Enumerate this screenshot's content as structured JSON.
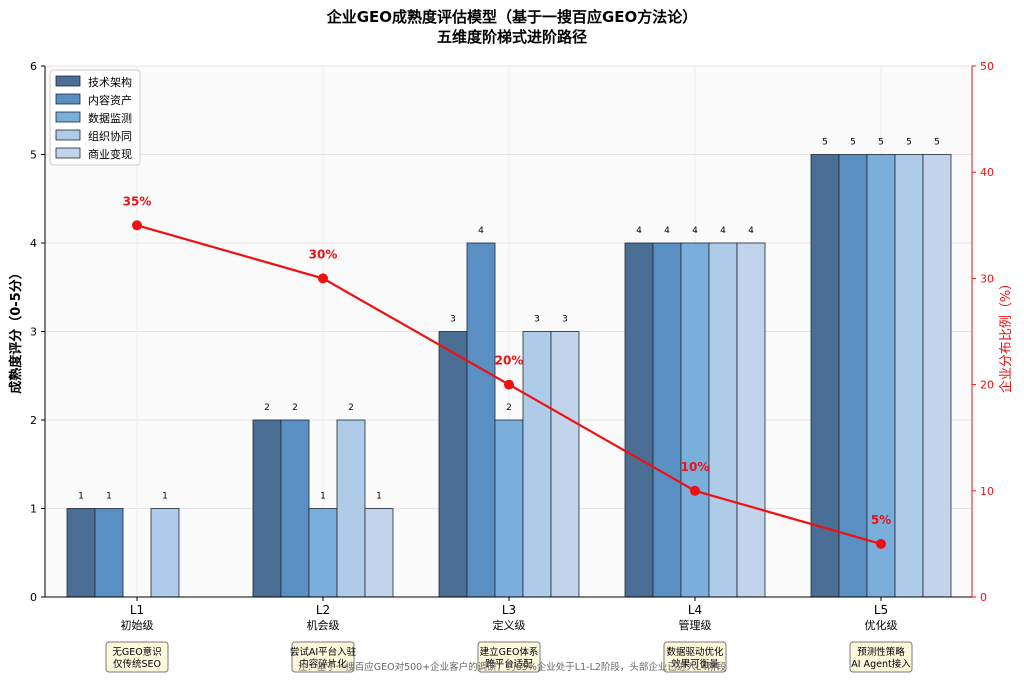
{
  "chart_data": {
    "type": "bar",
    "title": "企业GEO成熟度评估模型（基于一搜百应GEO方法论）",
    "subtitle": "五维度阶梯式进阶路径",
    "ylabel": "成熟度评分（0-5分）",
    "y2label": "企业分布比例（%）",
    "ylim": [
      0,
      6
    ],
    "y2lim": [
      0,
      50
    ],
    "yticks": [
      "0",
      "1",
      "2",
      "3",
      "4",
      "5",
      "6"
    ],
    "y2ticks": [
      "0",
      "10",
      "20",
      "30",
      "40",
      "50"
    ],
    "categories": [
      "L1",
      "L2",
      "L3",
      "L4",
      "L5"
    ],
    "category_names": [
      "初始级",
      "机会级",
      "定义级",
      "管理级",
      "优化级"
    ],
    "category_notes": [
      [
        "无GEO意识",
        "仅传统SEO"
      ],
      [
        "尝试AI平台入驻",
        "内容碎片化"
      ],
      [
        "建立GEO体系",
        "跨平台适配"
      ],
      [
        "数据驱动优化",
        "效果可衡量"
      ],
      [
        "预测性策略",
        "AI Agent接入"
      ]
    ],
    "series": [
      {
        "name": "技术架构",
        "color": "#4a6e94",
        "values": [
          1,
          2,
          3,
          4,
          5
        ]
      },
      {
        "name": "内容资产",
        "color": "#5a8fc3",
        "values": [
          1,
          2,
          4,
          4,
          5
        ]
      },
      {
        "name": "数据监测",
        "color": "#7aaedb",
        "values": [
          0,
          1,
          2,
          4,
          5
        ]
      },
      {
        "name": "组织协同",
        "color": "#aecbe8",
        "values": [
          1,
          2,
          3,
          4,
          5
        ]
      },
      {
        "name": "商业变现",
        "color": "#c2d3ec",
        "values": [
          0,
          1,
          3,
          4,
          5
        ]
      }
    ],
    "line": {
      "values": [
        35,
        30,
        20,
        10,
        5
      ],
      "labels": [
        "35%",
        "30%",
        "20%",
        "10%",
        "5%"
      ],
      "color": "#ee1111"
    },
    "legend_position": "top-left",
    "grid": true,
    "footnote": "注：基于一搜百应GEO对500+企业客户的调研，约65%企业处于L1-L2阶段，头部企业已进入L4阶段"
  }
}
